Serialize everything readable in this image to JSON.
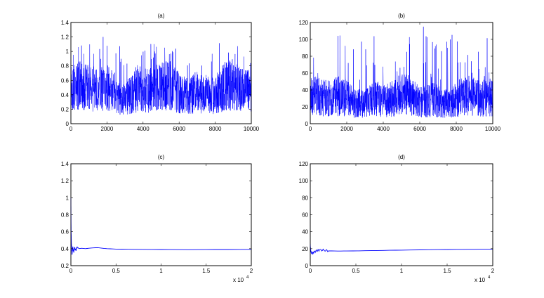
{
  "colors": {
    "series": "#0000ff",
    "axis": "#000000",
    "background": "#ffffff"
  },
  "chart_data": [
    {
      "type": "line",
      "title": "(a)",
      "xlabel": "",
      "ylabel": "",
      "xlim": [
        0,
        10000
      ],
      "ylim": [
        0,
        1.4
      ],
      "xticks": [
        0,
        2000,
        4000,
        6000,
        8000,
        10000
      ],
      "yticks": [
        0,
        0.2,
        0.4,
        0.6,
        0.8,
        1,
        1.2,
        1.4
      ],
      "xtick_labels": [
        "0",
        "2000",
        "4000",
        "6000",
        "8000",
        "10000"
      ],
      "ytick_labels": [
        "0",
        "0.2",
        "0.4",
        "0.6",
        "0.8",
        "1",
        "1.2",
        "1.4"
      ],
      "grid": false,
      "series": [
        {
          "style": "trace",
          "summary": {
            "n": 10000,
            "typical_low": 0.15,
            "typical_high": 0.75,
            "mean_approx": 0.4,
            "max_approx": 1.2,
            "min_approx": 0.0
          }
        }
      ]
    },
    {
      "type": "line",
      "title": "(b)",
      "xlabel": "",
      "ylabel": "",
      "xlim": [
        0,
        10000
      ],
      "ylim": [
        0,
        120
      ],
      "xticks": [
        0,
        2000,
        4000,
        6000,
        8000,
        10000
      ],
      "yticks": [
        0,
        20,
        40,
        60,
        80,
        100,
        120
      ],
      "xtick_labels": [
        "0",
        "2000",
        "4000",
        "6000",
        "8000",
        "10000"
      ],
      "ytick_labels": [
        "0",
        "20",
        "40",
        "60",
        "80",
        "100",
        "120"
      ],
      "grid": false,
      "series": [
        {
          "style": "trace",
          "summary": {
            "n": 10000,
            "typical_low": 8,
            "typical_high": 50,
            "mean_approx": 25,
            "max_approx": 115,
            "min_approx": 2,
            "peak_x_approx": 6200
          }
        }
      ]
    },
    {
      "type": "line",
      "title": "(c)",
      "xlabel": "",
      "ylabel": "",
      "xlim": [
        0,
        20000
      ],
      "ylim": [
        0.2,
        1.4
      ],
      "xticks": [
        0,
        5000,
        10000,
        15000,
        20000
      ],
      "yticks": [
        0.2,
        0.4,
        0.6,
        0.8,
        1,
        1.2,
        1.4
      ],
      "xtick_labels": [
        "0",
        "0.5",
        "1",
        "1.5",
        "2"
      ],
      "ytick_labels": [
        "0.2",
        "0.4",
        "0.6",
        "0.8",
        "1",
        "1.2",
        "1.4"
      ],
      "x_multiplier": "x 10",
      "x_multiplier_exp": "4",
      "grid": false,
      "series": [
        {
          "style": "running-mean",
          "points": [
            [
              0,
              1.0
            ],
            [
              20,
              0.65
            ],
            [
              60,
              0.45
            ],
            [
              120,
              0.33
            ],
            [
              200,
              0.42
            ],
            [
              300,
              0.36
            ],
            [
              400,
              0.41
            ],
            [
              550,
              0.38
            ],
            [
              700,
              0.42
            ],
            [
              900,
              0.4
            ],
            [
              1200,
              0.405
            ],
            [
              1600,
              0.4
            ],
            [
              2200,
              0.408
            ],
            [
              3000,
              0.412
            ],
            [
              4000,
              0.4
            ],
            [
              5000,
              0.395
            ],
            [
              7000,
              0.393
            ],
            [
              10000,
              0.39
            ],
            [
              13000,
              0.388
            ],
            [
              16000,
              0.39
            ],
            [
              20000,
              0.392
            ]
          ]
        }
      ]
    },
    {
      "type": "line",
      "title": "(d)",
      "xlabel": "",
      "ylabel": "",
      "xlim": [
        0,
        20000
      ],
      "ylim": [
        0,
        120
      ],
      "xticks": [
        0,
        5000,
        10000,
        15000,
        20000
      ],
      "yticks": [
        0,
        20,
        40,
        60,
        80,
        100,
        120
      ],
      "xtick_labels": [
        "0",
        "0.5",
        "1",
        "1.5",
        "2"
      ],
      "ytick_labels": [
        "0",
        "20",
        "40",
        "60",
        "80",
        "100",
        "120"
      ],
      "x_multiplier": "x 10",
      "x_multiplier_exp": "4",
      "grid": false,
      "series": [
        {
          "style": "running-mean",
          "points": [
            [
              0,
              25
            ],
            [
              30,
              20
            ],
            [
              80,
              16
            ],
            [
              200,
              14.5
            ],
            [
              400,
              16
            ],
            [
              700,
              17.5
            ],
            [
              1000,
              18.5
            ],
            [
              1500,
              18.2
            ],
            [
              2000,
              17.5
            ],
            [
              3000,
              17.2
            ],
            [
              4000,
              17.3
            ],
            [
              6000,
              17.6
            ],
            [
              8000,
              18
            ],
            [
              10000,
              18.3
            ],
            [
              13000,
              18.8
            ],
            [
              16000,
              19.2
            ],
            [
              18000,
              19.3
            ],
            [
              20000,
              19.4
            ]
          ]
        }
      ]
    }
  ]
}
